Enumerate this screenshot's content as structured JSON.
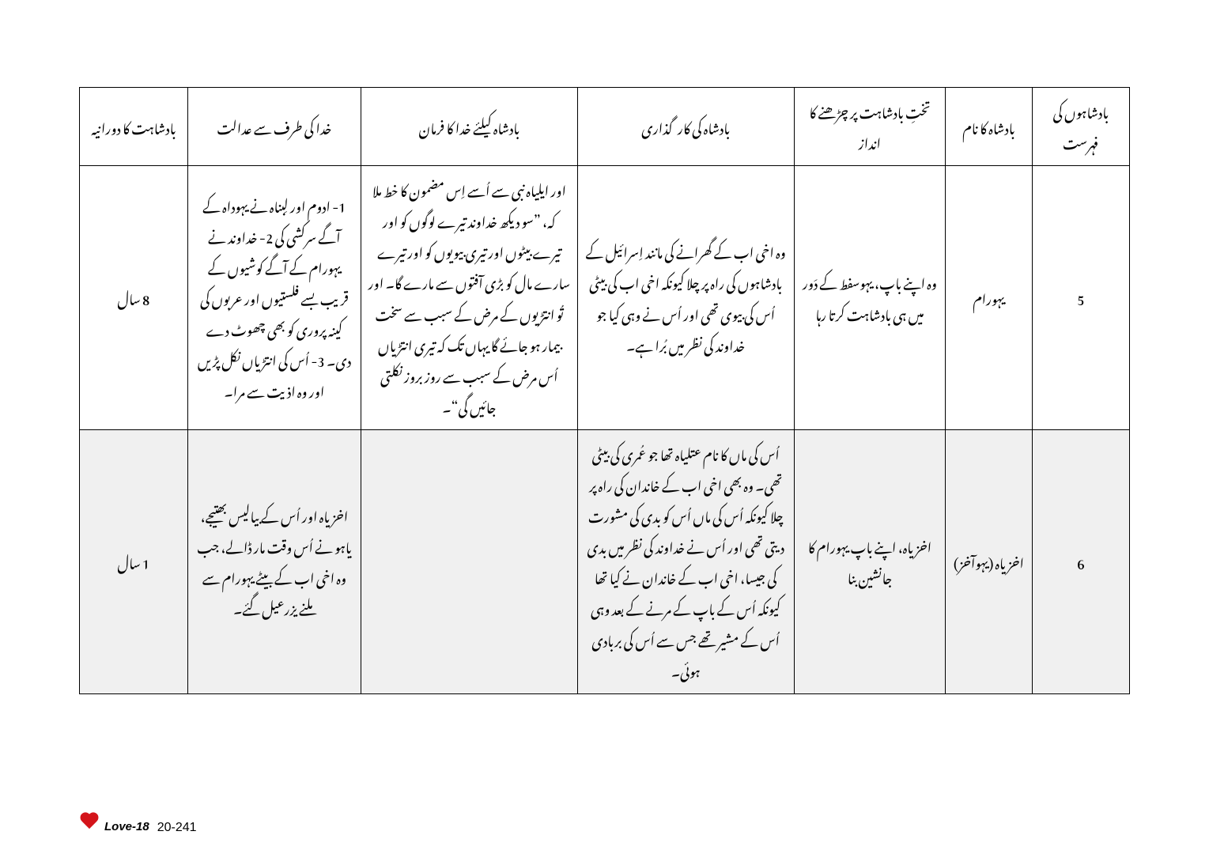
{
  "headers": {
    "index": "بادشاہوں کی فہرست",
    "name": "بادشاہ کا نام",
    "accession": "تختِ بادشاہت پر چڑھنے کا انداز",
    "performance": "بادشاہ کی کارگذاری",
    "decree": "بادشاہ کیلئے خدا کا فرمان",
    "judgment": "خدا کی طرف سے عدالت",
    "duration": "بادشاہت کا دورانیہ"
  },
  "rows": [
    {
      "index": "5",
      "name": "یہورام",
      "accession": "وہ اپنے باپ، یہوسفط کے دَور میں ہی بادشاہت کرتا رہا",
      "performance": "وہ اخی اب کے گھرانے کی مانند اِسرائیل کے بادشاہوں کی راہ پر چلا کیونکہ اخی اب کی بیٹی اُس کی بیوی تھی اور اُس نے وہی کیا جو خداوند کی نظر میں بُرا ہے۔",
      "decree": "اور ایلیاہ نبی سے اُسے اِس مضمون کا خط ملا کہ، ”سو دیکھ خداوند تیرے لوگوں کو اور تیرے بیٹوں اور تیری بیویوں کو اور تیرے سارے مال کو بڑی آفتوں سے مارے گا۔ اور تُو انتڑیوں کے مرض کے سبب سے سخت بیمار ہو جائے گا یہاں تک کہ تیری انتڑیاں اُس مرض کے سبب سے روز بروز نکلتی جائیں گی“۔",
      "judgment": "1- ادوم اور لِبناہ نے یہوداہ کے آگے سرکشی کی 2- خداوند نے یہورام کے آگے کوشیوں کے قریب بسے فلستیوں اور عربوں کی کینہ پروری کو بھی چھوٹ دے دی۔ 3- اُس کی انتڑیاں نکل پڑیں اور وہ اذیت سے مرا۔",
      "duration": "8 سال"
    },
    {
      "index": "6",
      "name": "اخزیاہ (یہوآخز)",
      "accession": "اخزیاہ، اپنے باپ یہورام کا جانشین بنا",
      "performance": "اُس کی ماں کا نام عتلیاہ تھا جو عُمری کی بیٹی تھی۔ وہ بھی اخی اب کے خاندان کی راہ پر چلا کیونکہ اُس کی ماں اُس کو بدی کی مشورت دیتی تھی اور اُس نے خداوند کی نظر میں بدی کی جیسا، اخی اب کے خاندان نے کیا تھا کیونکہ اُس کے باپ کے مرنے کے بعد وہی اُس کے مشیر تھے جس سے اُس کی بربادی ہوئی۔",
      "decree": "",
      "judgment": "اخزیاہ اور اُس کے بیالیس بھتیجے، یاہو نے اُس وقت مار ڈالے، جب وہ اخی اب کے بیٹے یہورام سے ملنے یزرعیل گئے۔",
      "duration": "1 سال"
    }
  ],
  "footer": {
    "brand": "Love-18",
    "page": "20-241"
  }
}
